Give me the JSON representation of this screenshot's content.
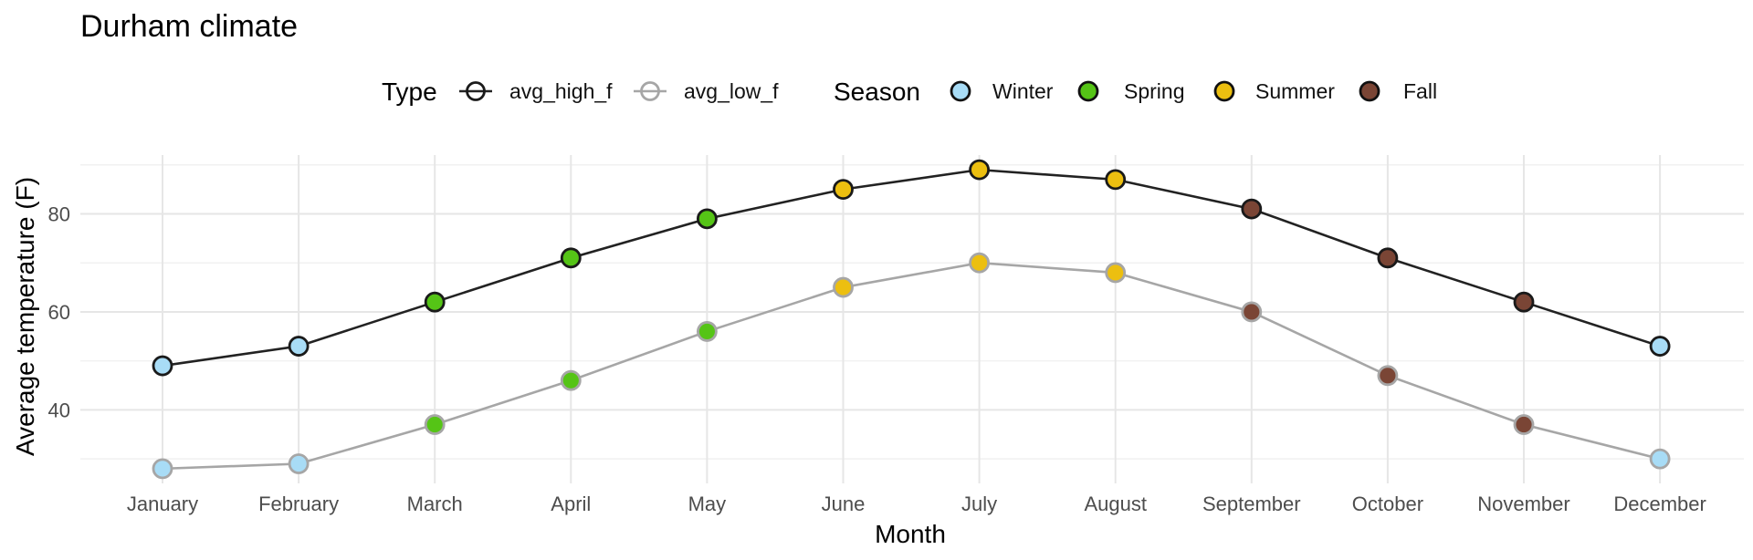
{
  "chart_data": {
    "type": "line",
    "title": "Durham climate",
    "xlabel": "Month",
    "ylabel": "Average temperature (F)",
    "categories": [
      "January",
      "February",
      "March",
      "April",
      "May",
      "June",
      "July",
      "August",
      "September",
      "October",
      "November",
      "December"
    ],
    "ylim": [
      25,
      92
    ],
    "yticks": [
      40,
      60,
      80
    ],
    "grid": true,
    "series": [
      {
        "name": "avg_high_f",
        "line_color": "#222222",
        "outline_color": "#1a1a1a",
        "values": [
          49,
          53,
          62,
          71,
          79,
          85,
          89,
          87,
          81,
          71,
          62,
          53
        ]
      },
      {
        "name": "avg_low_f",
        "line_color": "#a6a6a6",
        "outline_color": "#a6a6a6",
        "values": [
          28,
          29,
          37,
          46,
          56,
          65,
          70,
          68,
          60,
          47,
          37,
          30
        ]
      }
    ],
    "point_season": [
      "Winter",
      "Winter",
      "Spring",
      "Spring",
      "Spring",
      "Summer",
      "Summer",
      "Summer",
      "Fall",
      "Fall",
      "Fall",
      "Winter"
    ],
    "legend": {
      "placement": "top",
      "type_title": "Type",
      "type_entries": [
        "avg_high_f",
        "avg_low_f"
      ],
      "season_title": "Season",
      "season_entries": [
        {
          "name": "Winter",
          "color": "#a8dcf6"
        },
        {
          "name": "Spring",
          "color": "#55c416"
        },
        {
          "name": "Summer",
          "color": "#ecbf10"
        },
        {
          "name": "Fall",
          "color": "#7a4535"
        }
      ]
    }
  }
}
